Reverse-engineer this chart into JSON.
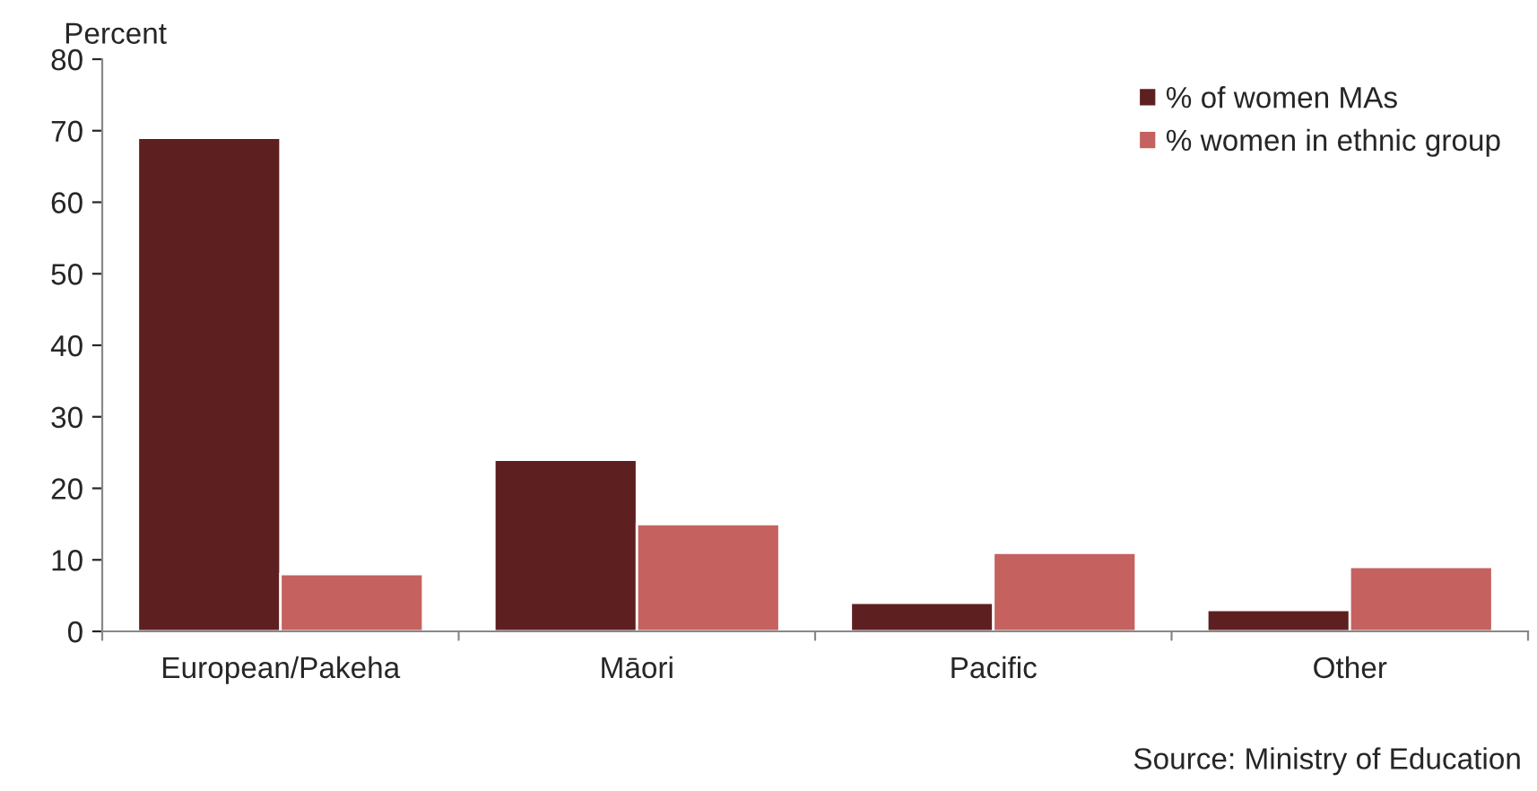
{
  "chart_data": {
    "type": "bar",
    "ylabel": "Percent",
    "categories": [
      "European/Pakeha",
      "Māori",
      "Pacific",
      "Other"
    ],
    "series": [
      {
        "name": "% of women MAs",
        "color": "#5e1f20",
        "values": [
          69,
          24,
          4,
          3
        ]
      },
      {
        "name": "% women in ethnic group",
        "color": "#c5615f",
        "values": [
          8,
          15,
          11,
          9
        ]
      }
    ],
    "ylim": [
      0,
      80
    ],
    "yticks": [
      0,
      10,
      20,
      30,
      40,
      50,
      60,
      70,
      80
    ],
    "grid": false,
    "legend": "top right",
    "annotations": [
      "Source: Ministry of Education"
    ]
  }
}
